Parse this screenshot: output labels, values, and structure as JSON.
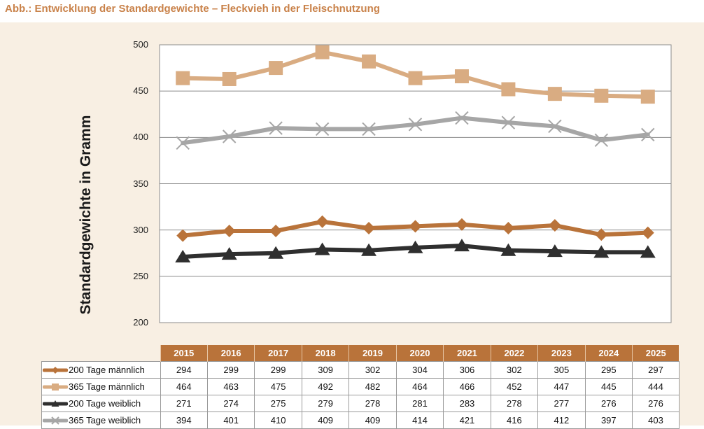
{
  "figure_title": "Abb.: Entwicklung der Standardgewichte – Fleckvieh in der Fleischnutzung",
  "chart_data": {
    "type": "line",
    "title": "Abb.: Entwicklung der Standardgewichte – Fleckvieh in der Fleischnutzung",
    "xlabel": "",
    "ylabel": "Standardgewichte in Gramm",
    "ylim": [
      200,
      500
    ],
    "yticks": [
      "500",
      "450",
      "400",
      "350",
      "300",
      "250",
      "200"
    ],
    "grid": true,
    "legend": "data table below chart",
    "categories": [
      "2015",
      "2016",
      "2017",
      "2018",
      "2019",
      "2020",
      "2021",
      "2022",
      "2023",
      "2024",
      "2025"
    ],
    "series": [
      {
        "name": "200 Tage männlich",
        "color": "#b9733a",
        "marker": "diamond",
        "values": [
          294,
          299,
          299,
          309,
          302,
          304,
          306,
          302,
          305,
          295,
          297
        ]
      },
      {
        "name": "365 Tage männlich",
        "color": "#d9ac82",
        "marker": "square",
        "values": [
          464,
          463,
          475,
          492,
          482,
          464,
          466,
          452,
          447,
          445,
          444
        ]
      },
      {
        "name": "200 Tage weiblich",
        "color": "#2f2f2f",
        "marker": "triangle",
        "values": [
          271,
          274,
          275,
          279,
          278,
          281,
          283,
          278,
          277,
          276,
          276
        ]
      },
      {
        "name": "365 Tage weiblich",
        "color": "#a6a6a6",
        "marker": "cross",
        "values": [
          394,
          401,
          410,
          409,
          409,
          414,
          421,
          416,
          412,
          397,
          403
        ]
      }
    ]
  }
}
